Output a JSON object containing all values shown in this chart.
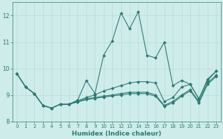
{
  "xlabel": "Humidex (Indice chaleur)",
  "background_color": "#ceecea",
  "grid_color": "#b0d8d4",
  "line_color": "#2a7a72",
  "xlim": [
    -0.5,
    23.5
  ],
  "ylim": [
    8,
    12.5
  ],
  "yticks": [
    8,
    9,
    10,
    11,
    12
  ],
  "xticks": [
    0,
    1,
    2,
    3,
    4,
    5,
    6,
    7,
    8,
    9,
    10,
    11,
    12,
    13,
    14,
    15,
    16,
    17,
    18,
    19,
    20,
    21,
    22,
    23
  ],
  "lines": [
    {
      "x": [
        0,
        1,
        2,
        3,
        4,
        5,
        6,
        7,
        8,
        9,
        10,
        11,
        12,
        13,
        14,
        15,
        16,
        17,
        18,
        19,
        20,
        21,
        22,
        23
      ],
      "y": [
        9.8,
        9.3,
        9.05,
        8.6,
        8.5,
        8.65,
        8.65,
        8.8,
        9.55,
        9.05,
        10.5,
        11.05,
        12.1,
        11.5,
        12.15,
        10.5,
        10.4,
        11.0,
        9.35,
        9.55,
        9.4,
        8.85,
        9.6,
        9.9
      ]
    },
    {
      "x": [
        0,
        1,
        2,
        3,
        4,
        5,
        6,
        7,
        8,
        9,
        10,
        11,
        12,
        13,
        14,
        15,
        16,
        17,
        18,
        19,
        20,
        21,
        22,
        23
      ],
      "y": [
        9.8,
        9.3,
        9.05,
        8.6,
        8.5,
        8.65,
        8.65,
        8.78,
        8.9,
        9.0,
        9.15,
        9.25,
        9.35,
        9.45,
        9.5,
        9.5,
        9.45,
        8.75,
        8.9,
        9.3,
        9.4,
        8.85,
        9.55,
        9.9
      ]
    },
    {
      "x": [
        0,
        1,
        2,
        3,
        4,
        5,
        6,
        7,
        8,
        9,
        10,
        11,
        12,
        13,
        14,
        15,
        16,
        17,
        18,
        19,
        20,
        21,
        22,
        23
      ],
      "y": [
        9.8,
        9.3,
        9.05,
        8.6,
        8.5,
        8.65,
        8.65,
        8.75,
        8.85,
        8.9,
        8.95,
        9.0,
        9.05,
        9.1,
        9.1,
        9.1,
        9.0,
        8.6,
        8.75,
        9.0,
        9.2,
        8.75,
        9.45,
        9.75
      ]
    },
    {
      "x": [
        0,
        1,
        2,
        3,
        4,
        5,
        6,
        7,
        8,
        9,
        10,
        11,
        12,
        13,
        14,
        15,
        16,
        17,
        18,
        19,
        20,
        21,
        22,
        23
      ],
      "y": [
        9.8,
        9.3,
        9.05,
        8.6,
        8.5,
        8.65,
        8.65,
        8.73,
        8.82,
        8.87,
        8.92,
        8.96,
        9.0,
        9.05,
        9.05,
        9.05,
        8.95,
        8.57,
        8.7,
        8.95,
        9.15,
        8.7,
        9.4,
        9.7
      ]
    }
  ],
  "marker": "D",
  "marker_size": 2,
  "line_width": 0.8,
  "figsize": [
    3.2,
    2.0
  ],
  "dpi": 100
}
